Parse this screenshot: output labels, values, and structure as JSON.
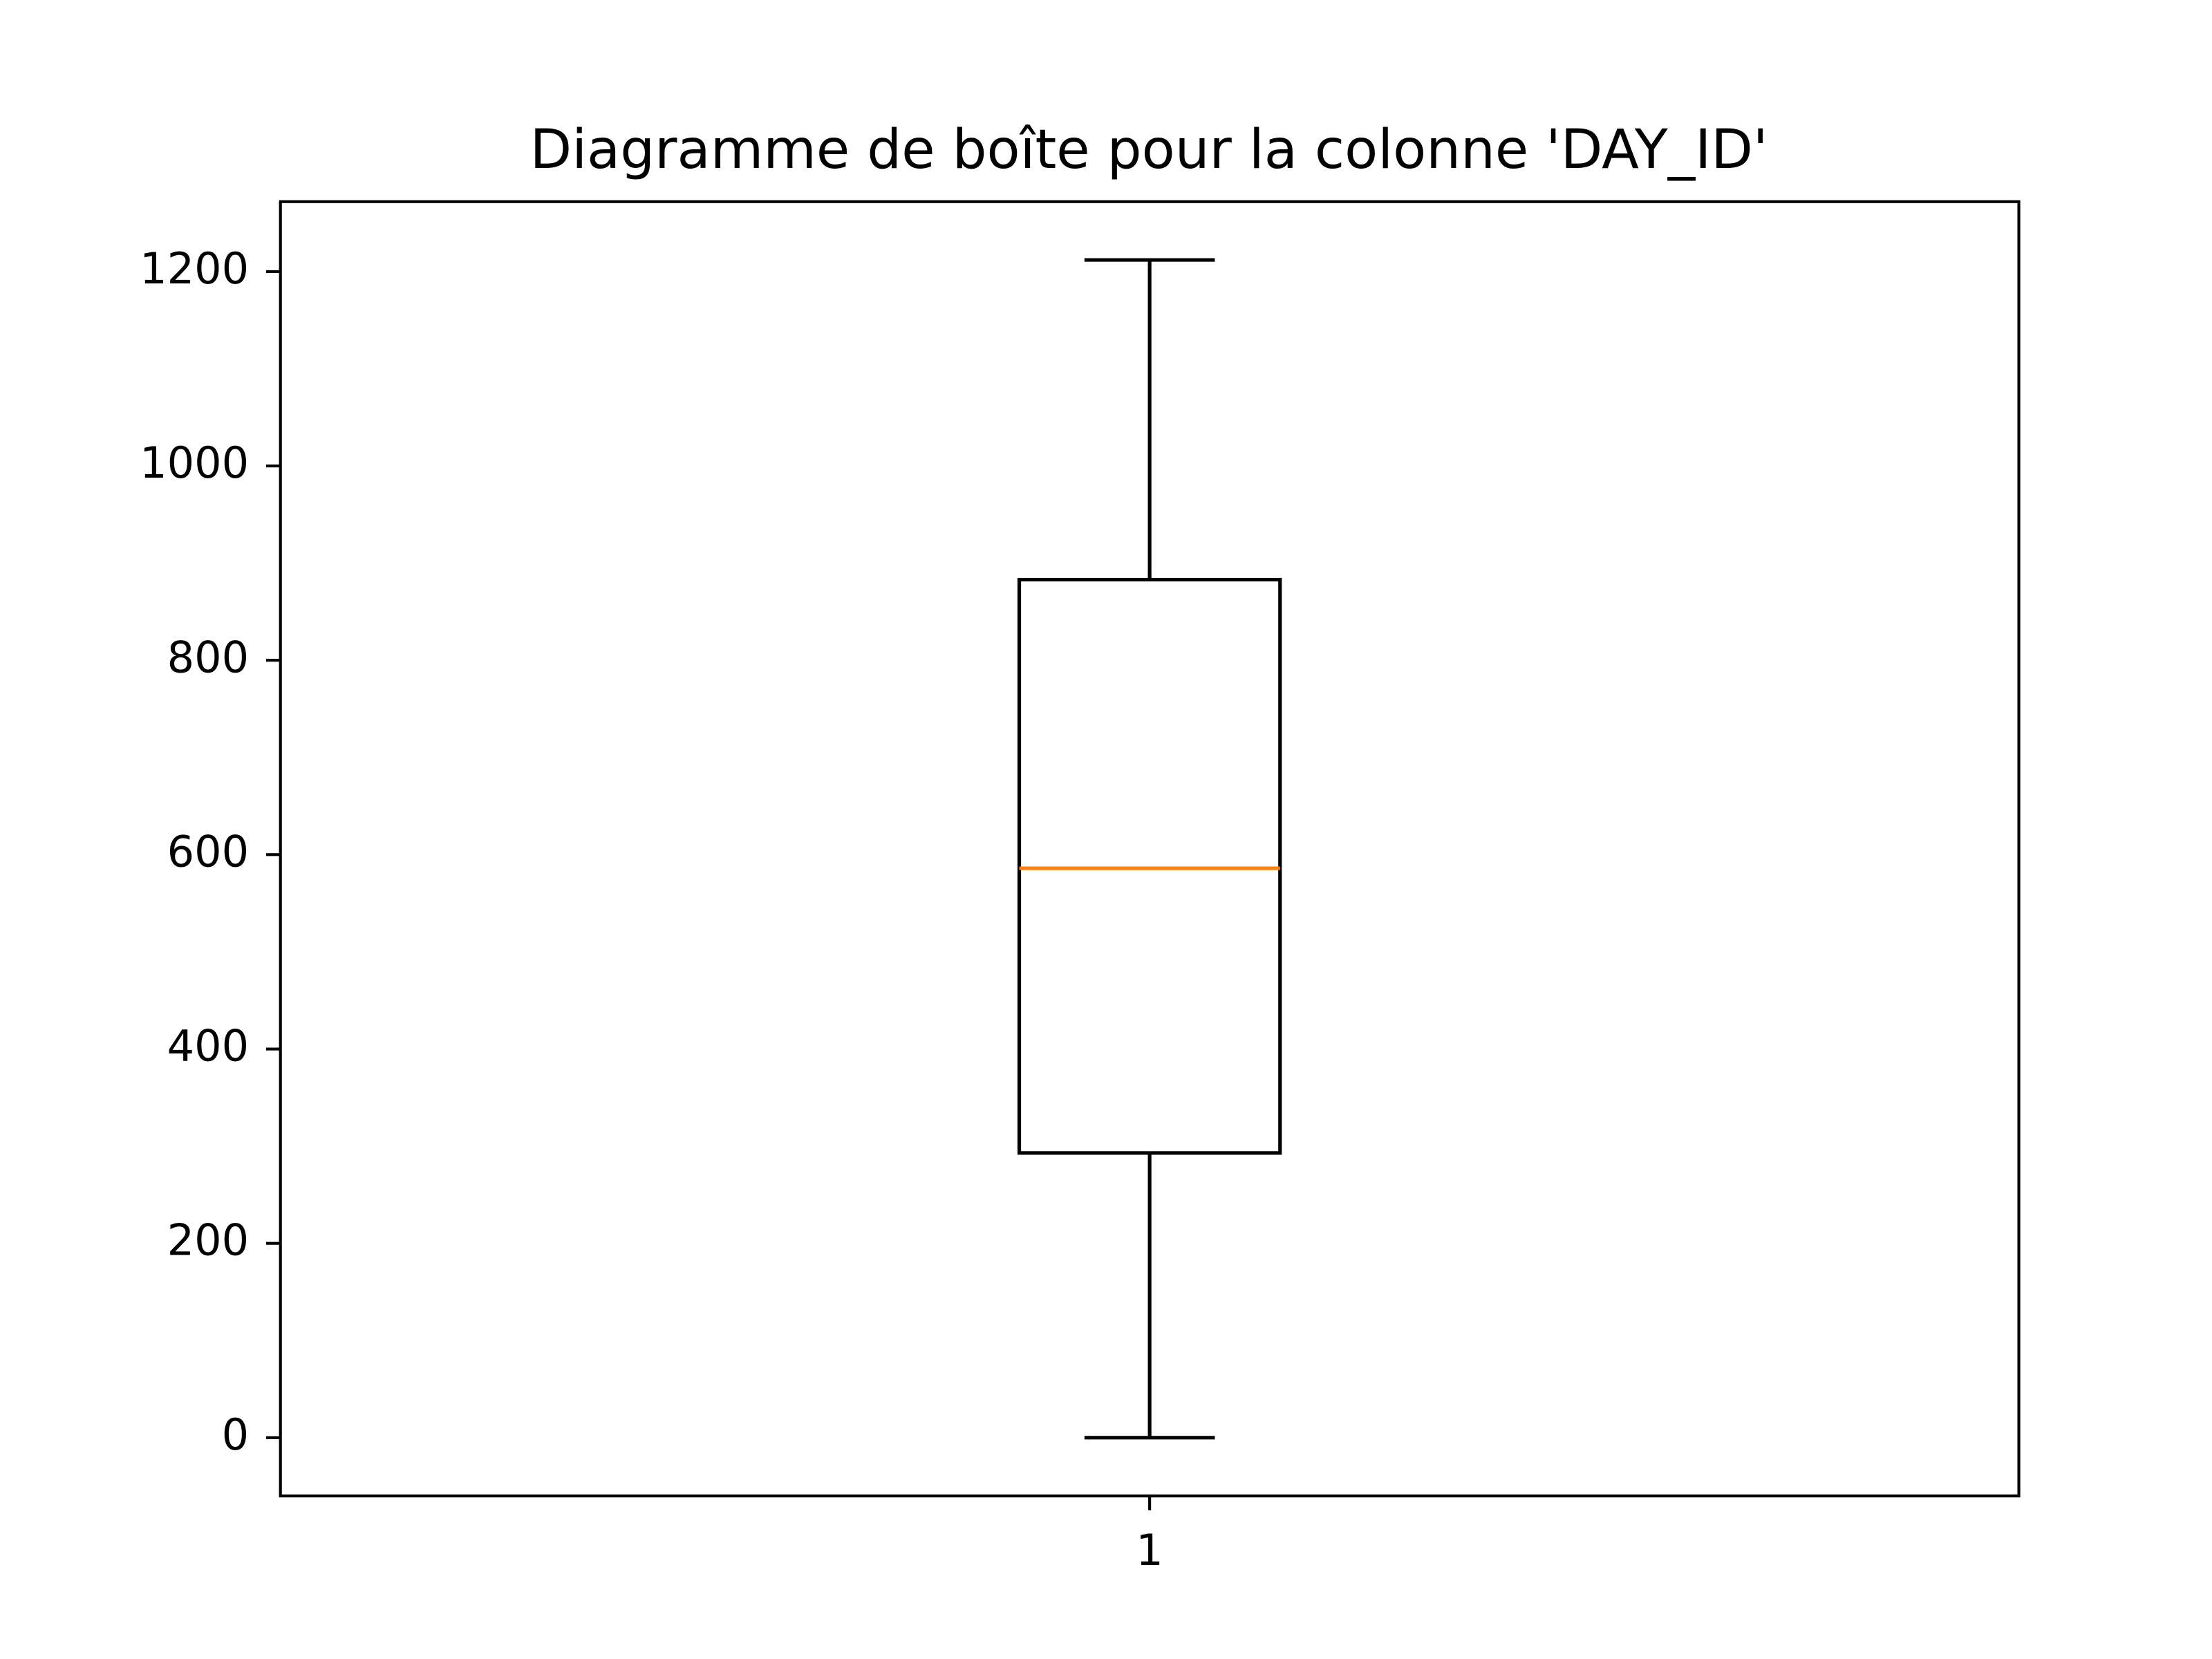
{
  "chart_data": {
    "type": "box",
    "title": "Diagramme de boîte pour la colonne 'DAY_ID'",
    "categories": [
      "1"
    ],
    "boxes": [
      {
        "min": 0,
        "q1": 293,
        "median": 586,
        "q3": 883,
        "max": 1212
      }
    ],
    "color": "#000000",
    "median_color": "#ff7f0e",
    "ylim": [
      -60,
      1272
    ],
    "yticks": [
      0,
      200,
      400,
      600,
      800,
      1000,
      1200
    ],
    "grid": false
  }
}
